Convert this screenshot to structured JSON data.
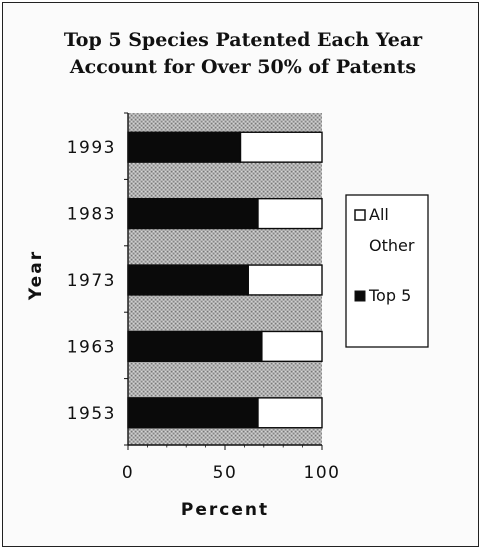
{
  "chart_data": {
    "type": "bar",
    "orientation": "horizontal",
    "stacked": true,
    "title_lines": [
      "Top 5 Species Patented Each Year",
      "Account for Over 50% of Patents"
    ],
    "xlabel": "Percent",
    "ylabel": "Year",
    "categories": [
      "1993",
      "1983",
      "1973",
      "1963",
      "1953"
    ],
    "xlim": [
      0,
      100
    ],
    "xticks": [
      "0",
      "50",
      "100"
    ],
    "series": [
      {
        "name": "Top 5",
        "values": [
          58,
          67,
          62,
          69,
          67
        ],
        "color": "#0a0a0a"
      },
      {
        "name": "All Other",
        "values": [
          42,
          33,
          38,
          31,
          33
        ],
        "color": "#ffffff"
      }
    ],
    "legend": {
      "placement": "right",
      "entries": [
        {
          "label_lines": [
            "All",
            "Other"
          ],
          "swatch": "#ffffff"
        },
        {
          "label_lines": [
            "Top 5"
          ],
          "swatch": "#0a0a0a"
        }
      ]
    },
    "plot_background": "stippled-gray",
    "grid": false
  }
}
